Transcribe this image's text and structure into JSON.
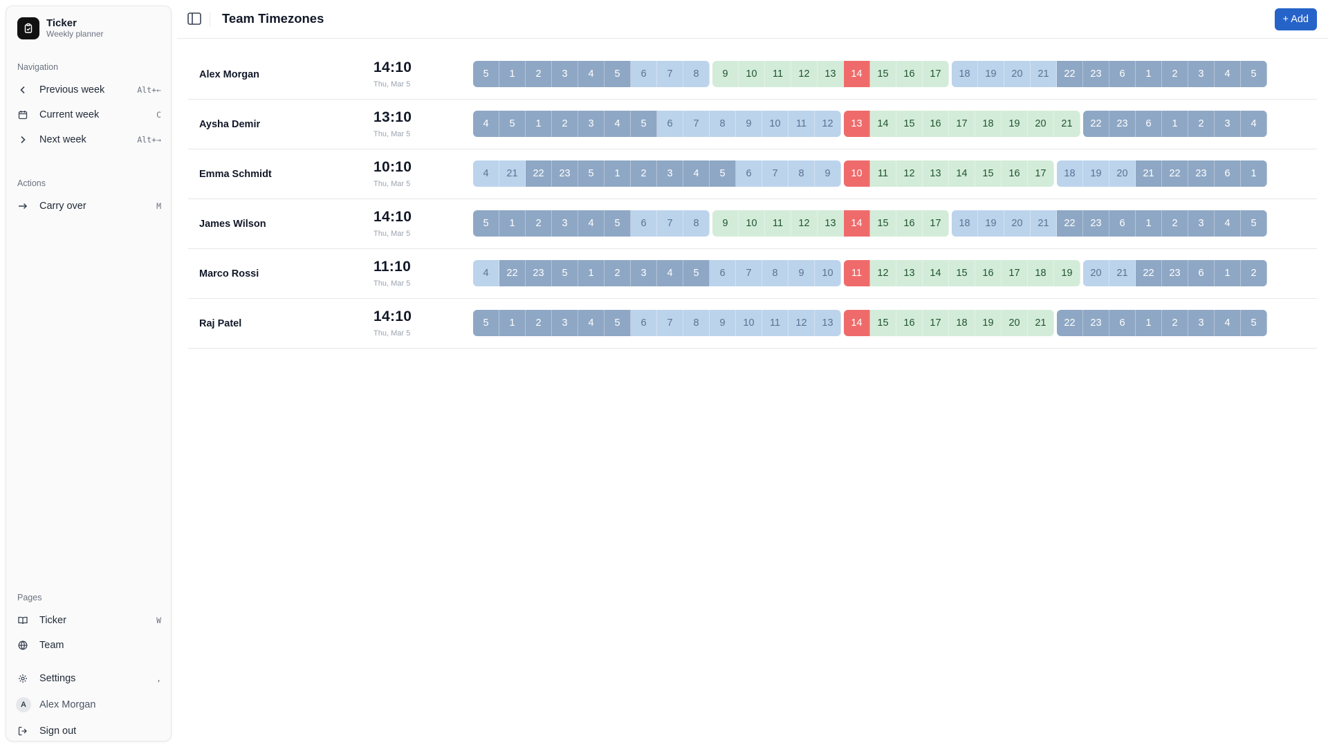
{
  "app": {
    "name": "Ticker",
    "subtitle": "Weekly planner"
  },
  "navigation": {
    "label": "Navigation",
    "items": [
      {
        "label": "Previous week",
        "shortcut": "Alt+←",
        "icon": "chevron-left-icon"
      },
      {
        "label": "Current week",
        "shortcut": "C",
        "icon": "calendar-icon"
      },
      {
        "label": "Next week",
        "shortcut": "Alt+→",
        "icon": "chevron-right-icon"
      }
    ]
  },
  "actions": {
    "label": "Actions",
    "items": [
      {
        "label": "Carry over",
        "shortcut": "M",
        "icon": "arrow-right-icon"
      }
    ]
  },
  "pages": {
    "label": "Pages",
    "items": [
      {
        "label": "Ticker",
        "shortcut": "W",
        "icon": "book-icon"
      },
      {
        "label": "Team",
        "shortcut": "",
        "icon": "globe-icon"
      }
    ]
  },
  "footer": {
    "settings": {
      "label": "Settings",
      "shortcut": ",",
      "icon": "gear-icon"
    },
    "user": {
      "initial": "A",
      "name": "Alex Morgan"
    },
    "signout": {
      "label": "Sign out",
      "icon": "sign-out-icon"
    }
  },
  "header": {
    "title": "Team Timezones",
    "add_label": "+ Add"
  },
  "colors": {
    "night": "#8ea7c4",
    "edge": "#bcd3ec",
    "work": "#d3ecd9",
    "current": "#ef6b6b",
    "accent": "#2563c9"
  },
  "members": [
    {
      "name": "Alex Morgan",
      "time": "14:10",
      "date": "Thu, Mar 5",
      "hours": [
        "5",
        "1",
        "2",
        "3",
        "4",
        "5",
        "6",
        "7",
        "8",
        "9",
        "10",
        "11",
        "12",
        "13",
        "14",
        "15",
        "16",
        "17",
        "18",
        "19",
        "20",
        "21",
        "22",
        "23",
        "6",
        "1",
        "2",
        "3",
        "4",
        "5"
      ],
      "kinds": "nnnnnneeewwwwwcwwweeeennnnnnnn"
    },
    {
      "name": "Aysha Demir",
      "time": "13:10",
      "date": "Thu, Mar 5",
      "hours": [
        "4",
        "5",
        "1",
        "2",
        "3",
        "4",
        "5",
        "6",
        "7",
        "8",
        "9",
        "10",
        "11",
        "12",
        "13",
        "14",
        "15",
        "16",
        "17",
        "18",
        "19",
        "20",
        "21",
        "22",
        "23",
        "6",
        "1",
        "2",
        "3",
        "4"
      ],
      "kinds": "nnnnnnneeeeeeecwwwwwwwwnnnnnnn"
    },
    {
      "name": "Emma Schmidt",
      "time": "10:10",
      "date": "Thu, Mar 5",
      "hours": [
        "4",
        "21",
        "22",
        "23",
        "5",
        "1",
        "2",
        "3",
        "4",
        "5",
        "6",
        "7",
        "8",
        "9",
        "10",
        "11",
        "12",
        "13",
        "14",
        "15",
        "16",
        "17",
        "18",
        "19",
        "20",
        "21",
        "22",
        "23",
        "6",
        "1"
      ],
      "kinds": "eennnnnnnneeeecwwwwwwweeennnnn"
    },
    {
      "name": "James Wilson",
      "time": "14:10",
      "date": "Thu, Mar 5",
      "hours": [
        "5",
        "1",
        "2",
        "3",
        "4",
        "5",
        "6",
        "7",
        "8",
        "9",
        "10",
        "11",
        "12",
        "13",
        "14",
        "15",
        "16",
        "17",
        "18",
        "19",
        "20",
        "21",
        "22",
        "23",
        "6",
        "1",
        "2",
        "3",
        "4",
        "5"
      ],
      "kinds": "nnnnnneeewwwwwcwwweeeennnnnnnn"
    },
    {
      "name": "Marco Rossi",
      "time": "11:10",
      "date": "Thu, Mar 5",
      "hours": [
        "4",
        "22",
        "23",
        "5",
        "1",
        "2",
        "3",
        "4",
        "5",
        "6",
        "7",
        "8",
        "9",
        "10",
        "11",
        "12",
        "13",
        "14",
        "15",
        "16",
        "17",
        "18",
        "19",
        "20",
        "21",
        "22",
        "23",
        "6",
        "1",
        "2"
      ],
      "kinds": "ennnnnnnneeeeecwwwwwwwweennnnn"
    },
    {
      "name": "Raj Patel",
      "time": "14:10",
      "date": "Thu, Mar 5",
      "hours": [
        "5",
        "1",
        "2",
        "3",
        "4",
        "5",
        "6",
        "7",
        "8",
        "9",
        "10",
        "11",
        "12",
        "13",
        "14",
        "15",
        "16",
        "17",
        "18",
        "19",
        "20",
        "21",
        "22",
        "23",
        "6",
        "1",
        "2",
        "3",
        "4",
        "5"
      ],
      "kinds": "nnnnnneeeeeeeecwwwwwwwnnnnnnnn"
    }
  ]
}
